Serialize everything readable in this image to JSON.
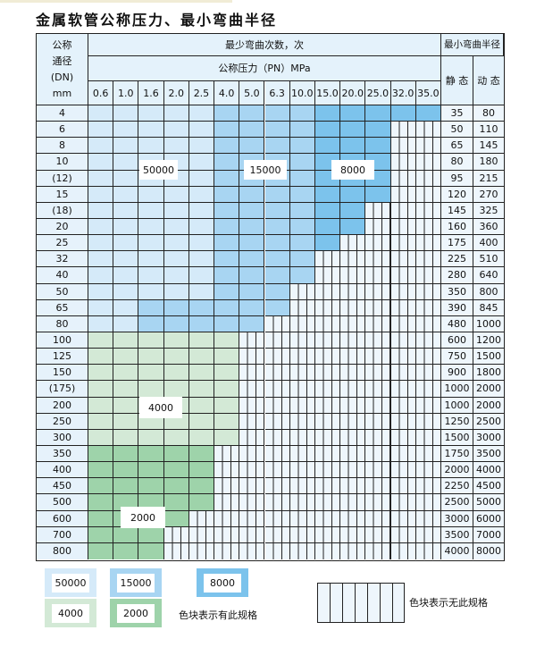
{
  "title": "金属软管公称压力、最小弯曲半径",
  "header": {
    "dn_lines": [
      "公称",
      "通径",
      "(DN)",
      "mm"
    ],
    "bend_count": "最少弯曲次数，次",
    "pressure": "公称压力（PN）MPa",
    "radius": "最小弯曲半径",
    "static": "静 态",
    "dynamic": "动 态",
    "pressures": [
      "0.6",
      "1.0",
      "1.6",
      "2.0",
      "2.5",
      "4.0",
      "5.0",
      "6.3",
      "10.0",
      "15.0",
      "20.0",
      "25.0",
      "32.0",
      "35.0"
    ]
  },
  "colors": {
    "50000": "#d5eaf9",
    "15000": "#a8d5f2",
    "8000": "#7cc3ec",
    "4000": "#d3e9d6",
    "2000": "#9ed3aa"
  },
  "rows": [
    {
      "dn": "4",
      "static": "35",
      "dynamic": "80",
      "levels": [
        50000,
        50000,
        50000,
        50000,
        50000,
        15000,
        15000,
        15000,
        15000,
        8000,
        8000,
        8000,
        8000,
        8000
      ]
    },
    {
      "dn": "6",
      "static": "50",
      "dynamic": "110",
      "levels": [
        50000,
        50000,
        50000,
        50000,
        50000,
        15000,
        15000,
        15000,
        15000,
        8000,
        8000,
        8000,
        null,
        null
      ]
    },
    {
      "dn": "8",
      "static": "65",
      "dynamic": "145",
      "levels": [
        50000,
        50000,
        50000,
        50000,
        50000,
        15000,
        15000,
        15000,
        15000,
        8000,
        8000,
        8000,
        null,
        null
      ]
    },
    {
      "dn": "10",
      "static": "80",
      "dynamic": "180",
      "levels": [
        50000,
        50000,
        50000,
        50000,
        50000,
        15000,
        15000,
        15000,
        15000,
        8000,
        8000,
        8000,
        null,
        null
      ]
    },
    {
      "dn": "(12)",
      "static": "95",
      "dynamic": "215",
      "levels": [
        50000,
        50000,
        50000,
        50000,
        50000,
        15000,
        15000,
        15000,
        15000,
        8000,
        8000,
        8000,
        null,
        null
      ]
    },
    {
      "dn": "15",
      "static": "120",
      "dynamic": "270",
      "levels": [
        50000,
        50000,
        50000,
        50000,
        50000,
        15000,
        15000,
        15000,
        15000,
        8000,
        8000,
        8000,
        null,
        null
      ]
    },
    {
      "dn": "(18)",
      "static": "145",
      "dynamic": "325",
      "levels": [
        50000,
        50000,
        50000,
        50000,
        50000,
        15000,
        15000,
        15000,
        15000,
        8000,
        8000,
        null,
        null,
        null
      ]
    },
    {
      "dn": "20",
      "static": "160",
      "dynamic": "360",
      "levels": [
        50000,
        50000,
        50000,
        50000,
        50000,
        15000,
        15000,
        15000,
        15000,
        8000,
        8000,
        null,
        null,
        null
      ]
    },
    {
      "dn": "25",
      "static": "175",
      "dynamic": "400",
      "levels": [
        50000,
        50000,
        50000,
        50000,
        50000,
        15000,
        15000,
        15000,
        15000,
        8000,
        null,
        null,
        null,
        null
      ]
    },
    {
      "dn": "32",
      "static": "225",
      "dynamic": "510",
      "levels": [
        50000,
        50000,
        50000,
        50000,
        50000,
        15000,
        15000,
        15000,
        15000,
        null,
        null,
        null,
        null,
        null
      ]
    },
    {
      "dn": "40",
      "static": "280",
      "dynamic": "640",
      "levels": [
        50000,
        50000,
        50000,
        50000,
        50000,
        15000,
        15000,
        15000,
        15000,
        null,
        null,
        null,
        null,
        null
      ]
    },
    {
      "dn": "50",
      "static": "350",
      "dynamic": "800",
      "levels": [
        50000,
        50000,
        50000,
        50000,
        50000,
        15000,
        15000,
        15000,
        null,
        null,
        null,
        null,
        null,
        null
      ]
    },
    {
      "dn": "65",
      "static": "390",
      "dynamic": "845",
      "levels": [
        50000,
        50000,
        15000,
        15000,
        15000,
        15000,
        15000,
        15000,
        null,
        null,
        null,
        null,
        null,
        null
      ]
    },
    {
      "dn": "80",
      "static": "480",
      "dynamic": "1000",
      "levels": [
        50000,
        50000,
        15000,
        15000,
        15000,
        15000,
        15000,
        null,
        null,
        null,
        null,
        null,
        null,
        null
      ]
    },
    {
      "dn": "100",
      "static": "600",
      "dynamic": "1200",
      "levels": [
        4000,
        4000,
        4000,
        4000,
        4000,
        4000,
        null,
        null,
        null,
        null,
        null,
        null,
        null,
        null
      ]
    },
    {
      "dn": "125",
      "static": "750",
      "dynamic": "1500",
      "levels": [
        4000,
        4000,
        4000,
        4000,
        4000,
        4000,
        null,
        null,
        null,
        null,
        null,
        null,
        null,
        null
      ]
    },
    {
      "dn": "150",
      "static": "900",
      "dynamic": "1800",
      "levels": [
        4000,
        4000,
        4000,
        4000,
        4000,
        4000,
        null,
        null,
        null,
        null,
        null,
        null,
        null,
        null
      ]
    },
    {
      "dn": "(175)",
      "static": "1000",
      "dynamic": "2000",
      "levels": [
        4000,
        4000,
        4000,
        4000,
        4000,
        4000,
        null,
        null,
        null,
        null,
        null,
        null,
        null,
        null
      ]
    },
    {
      "dn": "200",
      "static": "1000",
      "dynamic": "2000",
      "levels": [
        4000,
        4000,
        4000,
        4000,
        4000,
        4000,
        null,
        null,
        null,
        null,
        null,
        null,
        null,
        null
      ]
    },
    {
      "dn": "250",
      "static": "1250",
      "dynamic": "2500",
      "levels": [
        4000,
        4000,
        4000,
        4000,
        4000,
        4000,
        null,
        null,
        null,
        null,
        null,
        null,
        null,
        null
      ]
    },
    {
      "dn": "300",
      "static": "1500",
      "dynamic": "3000",
      "levels": [
        4000,
        4000,
        4000,
        4000,
        4000,
        4000,
        null,
        null,
        null,
        null,
        null,
        null,
        null,
        null
      ]
    },
    {
      "dn": "350",
      "static": "1750",
      "dynamic": "3500",
      "levels": [
        2000,
        2000,
        2000,
        2000,
        2000,
        null,
        null,
        null,
        null,
        null,
        null,
        null,
        null,
        null
      ]
    },
    {
      "dn": "400",
      "static": "2000",
      "dynamic": "4000",
      "levels": [
        2000,
        2000,
        2000,
        2000,
        2000,
        null,
        null,
        null,
        null,
        null,
        null,
        null,
        null,
        null
      ]
    },
    {
      "dn": "450",
      "static": "2250",
      "dynamic": "4500",
      "levels": [
        2000,
        2000,
        2000,
        2000,
        2000,
        null,
        null,
        null,
        null,
        null,
        null,
        null,
        null,
        null
      ]
    },
    {
      "dn": "500",
      "static": "2500",
      "dynamic": "5000",
      "levels": [
        2000,
        2000,
        2000,
        2000,
        2000,
        null,
        null,
        null,
        null,
        null,
        null,
        null,
        null,
        null
      ]
    },
    {
      "dn": "600",
      "static": "3000",
      "dynamic": "6000",
      "levels": [
        2000,
        2000,
        2000,
        2000,
        null,
        null,
        null,
        null,
        null,
        null,
        null,
        null,
        null,
        null
      ]
    },
    {
      "dn": "700",
      "static": "3500",
      "dynamic": "7000",
      "levels": [
        2000,
        2000,
        2000,
        null,
        null,
        null,
        null,
        null,
        null,
        null,
        null,
        null,
        null,
        null
      ]
    },
    {
      "dn": "800",
      "static": "4000",
      "dynamic": "8000",
      "levels": [
        2000,
        2000,
        2000,
        null,
        null,
        null,
        null,
        null,
        null,
        null,
        null,
        null,
        null,
        null
      ]
    }
  ],
  "zone_labels": {
    "z50000": "50000",
    "z15000": "15000",
    "z8000": "8000",
    "z4000": "4000",
    "z2000": "2000"
  },
  "legend": {
    "items": [
      "50000",
      "15000",
      "8000",
      "4000",
      "2000"
    ],
    "has_spec": "色块表示有此规格",
    "no_spec": "色块表示无此规格"
  }
}
